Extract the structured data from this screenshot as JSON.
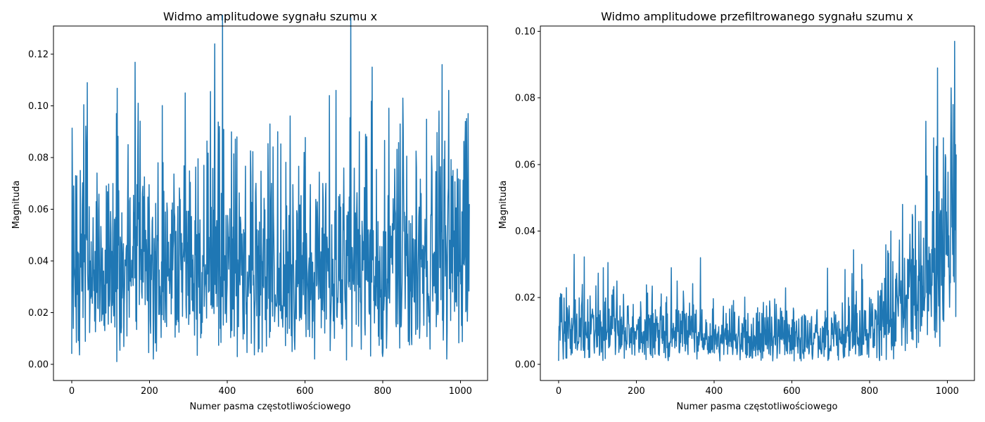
{
  "chart_data": [
    {
      "type": "line",
      "title": "Widmo amplitudowe sygnału szumu x",
      "xlabel": "Numer pasma częstotliwościowego",
      "ylabel": "Magnituda",
      "xlim": [
        -47,
        1070
      ],
      "ylim": [
        -0.0063,
        0.1309
      ],
      "xticks": [
        0,
        200,
        400,
        600,
        800,
        1000
      ],
      "yticks": [
        0.0,
        0.02,
        0.04,
        0.06,
        0.08,
        0.1,
        0.12
      ],
      "ytick_labels": [
        "0.00",
        "0.02",
        "0.04",
        "0.06",
        "0.08",
        "0.10",
        "0.12"
      ],
      "grid": false,
      "series": [
        {
          "color": "#1f77b4",
          "x_range": [
            0,
            1023
          ],
          "points": 1024,
          "baseline": 0.04,
          "spread": 0.019,
          "peaks": [
            [
              0,
              0.004
            ],
            [
              2,
              0.067
            ],
            [
              5,
              0.069
            ],
            [
              10,
              0.073
            ],
            [
              22,
              0.075
            ],
            [
              37,
              0.085
            ],
            [
              40,
              0.109
            ],
            [
              65,
              0.074
            ],
            [
              115,
              0.097
            ],
            [
              145,
              0.085
            ],
            [
              170,
              0.083
            ],
            [
              210,
              0.002
            ],
            [
              222,
              0.078
            ],
            [
              292,
              0.105
            ],
            [
              340,
              0.077
            ],
            [
              368,
              0.124
            ],
            [
              380,
              0.092
            ],
            [
              425,
              0.088
            ],
            [
              510,
              0.093
            ],
            [
              530,
              0.09
            ],
            [
              598,
              0.082
            ],
            [
              625,
              0.002
            ],
            [
              663,
              0.104
            ],
            [
              680,
              0.106
            ],
            [
              740,
              0.09
            ],
            [
              773,
              0.115
            ],
            [
              800,
              0.003
            ],
            [
              845,
              0.093
            ],
            [
              852,
              0.103
            ],
            [
              945,
              0.098
            ],
            [
              965,
              0.002
            ],
            [
              970,
              0.106
            ],
            [
              1012,
              0.084
            ],
            [
              1020,
              0.097
            ],
            [
              1023,
              0.062
            ]
          ]
        }
      ]
    },
    {
      "type": "line",
      "title": "Widmo amplitudowe przefiltrowanego sygnału szumu x",
      "xlabel": "Numer pasma częstotliwościowego",
      "ylabel": "Magnituda",
      "xlim": [
        -47,
        1070
      ],
      "ylim": [
        -0.0049,
        0.1016
      ],
      "xticks": [
        0,
        200,
        400,
        600,
        800,
        1000
      ],
      "yticks": [
        0.0,
        0.02,
        0.04,
        0.06,
        0.08,
        0.1
      ],
      "ytick_labels": [
        "0.00",
        "0.02",
        "0.04",
        "0.06",
        "0.08",
        "0.10"
      ],
      "grid": false,
      "series": [
        {
          "color": "#1f77b4",
          "x_range": [
            0,
            1023
          ],
          "points": 1024,
          "envelope": [
            [
              0,
              0.012
            ],
            [
              100,
              0.011
            ],
            [
              200,
              0.01
            ],
            [
              300,
              0.009
            ],
            [
              400,
              0.008
            ],
            [
              500,
              0.008
            ],
            [
              600,
              0.008
            ],
            [
              700,
              0.009
            ],
            [
              800,
              0.011
            ],
            [
              850,
              0.015
            ],
            [
              900,
              0.02
            ],
            [
              950,
              0.028
            ],
            [
              1000,
              0.035
            ],
            [
              1023,
              0.04
            ]
          ],
          "peaks": [
            [
              0,
              0.001
            ],
            [
              3,
              0.02
            ],
            [
              8,
              0.021
            ],
            [
              20,
              0.023
            ],
            [
              40,
              0.033
            ],
            [
              115,
              0.029
            ],
            [
              150,
              0.025
            ],
            [
              240,
              0.019
            ],
            [
              290,
              0.029
            ],
            [
              305,
              0.025
            ],
            [
              365,
              0.032
            ],
            [
              560,
              0.018
            ],
            [
              780,
              0.03
            ],
            [
              800,
              0.02
            ],
            [
              855,
              0.04
            ],
            [
              885,
              0.048
            ],
            [
              910,
              0.045
            ],
            [
              945,
              0.073
            ],
            [
              965,
              0.068
            ],
            [
              975,
              0.089
            ],
            [
              990,
              0.068
            ],
            [
              1010,
              0.083
            ],
            [
              1015,
              0.078
            ],
            [
              1019,
              0.097
            ],
            [
              1021,
              0.066
            ],
            [
              1023,
              0.063
            ]
          ]
        }
      ]
    }
  ]
}
